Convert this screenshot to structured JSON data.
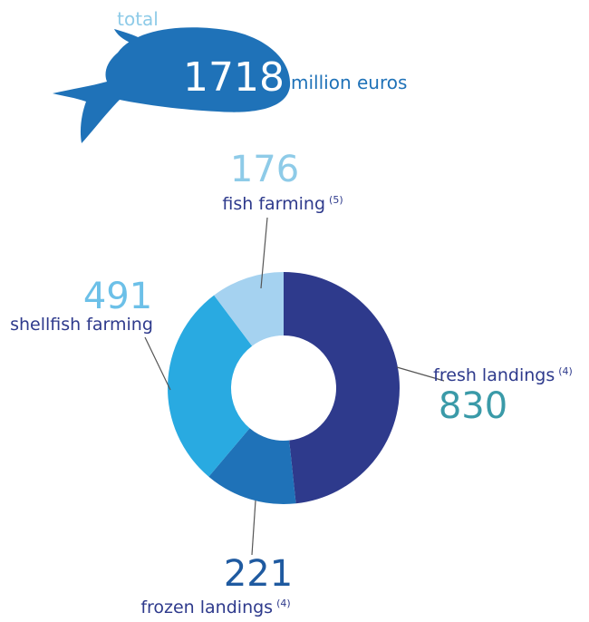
{
  "chart_data": {
    "type": "pie",
    "total_label": "total",
    "total": 1718,
    "unit": "million euros",
    "categories": [
      "fresh landings",
      "frozen landings",
      "shellfish farming",
      "fish farming"
    ],
    "footnotes": [
      "(4)",
      "(4)",
      null,
      "(5)"
    ],
    "values": [
      830,
      221,
      491,
      176
    ],
    "colors": [
      "#2e3a8c",
      "#1f72b8",
      "#29aae1",
      "#a5d2f0"
    ],
    "value_colors": [
      "#3a9aa8",
      "#1f5aa0",
      "#6cc0e8",
      "#8ecbe8"
    ],
    "hole": true
  }
}
